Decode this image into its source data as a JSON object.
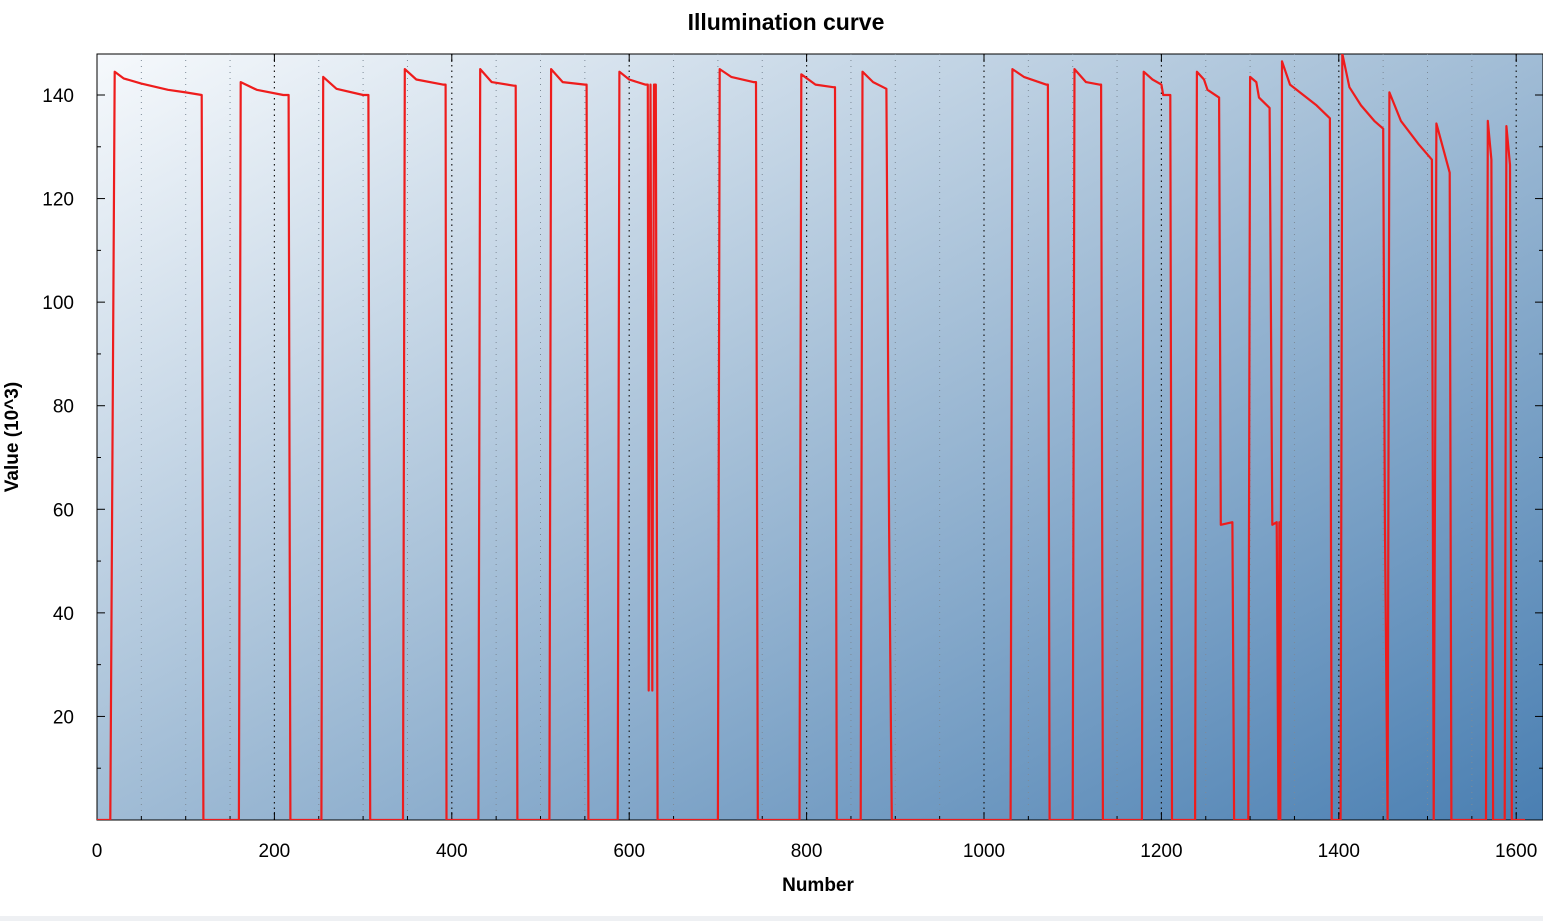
{
  "chart_data": {
    "type": "line",
    "title": "Illumination curve",
    "xlabel": "Number",
    "ylabel": "Value (10^3)",
    "xlim": [
      0,
      1610
    ],
    "ylim": [
      0,
      148
    ],
    "x_ticks": [
      0,
      200,
      400,
      600,
      800,
      1000,
      1200,
      1400,
      1600
    ],
    "y_ticks": [
      20,
      40,
      60,
      80,
      100,
      120,
      140
    ],
    "grid": "vertical dotted",
    "background": "gradient light to steel blue",
    "series": [
      {
        "color": "#ee1c1c",
        "points": [
          [
            0,
            0
          ],
          [
            15,
            0
          ],
          [
            20,
            144.5
          ],
          [
            30,
            143.2
          ],
          [
            50,
            142.2
          ],
          [
            80,
            141.0
          ],
          [
            100,
            140.5
          ],
          [
            118,
            140.0
          ],
          [
            120,
            0
          ],
          [
            160,
            0
          ],
          [
            162,
            142.5
          ],
          [
            180,
            141.0
          ],
          [
            210,
            140.0
          ],
          [
            216,
            140.0
          ],
          [
            218,
            0
          ],
          [
            253,
            0
          ],
          [
            255,
            143.5
          ],
          [
            270,
            141.2
          ],
          [
            300,
            140.0
          ],
          [
            306,
            140.0
          ],
          [
            308,
            0
          ],
          [
            345,
            0
          ],
          [
            347,
            145.0
          ],
          [
            360,
            143.0
          ],
          [
            390,
            142.0
          ],
          [
            393,
            142.0
          ],
          [
            394,
            0
          ],
          [
            430,
            0
          ],
          [
            432,
            145.0
          ],
          [
            445,
            142.5
          ],
          [
            470,
            141.8
          ],
          [
            472,
            141.8
          ],
          [
            474,
            0
          ],
          [
            510,
            0
          ],
          [
            512,
            145.0
          ],
          [
            525,
            142.5
          ],
          [
            550,
            142.0
          ],
          [
            552,
            142.0
          ],
          [
            554,
            0
          ],
          [
            587,
            0
          ],
          [
            589,
            144.5
          ],
          [
            600,
            143.0
          ],
          [
            618,
            142.0
          ],
          [
            621,
            142.0
          ],
          [
            622,
            25
          ],
          [
            624,
            142.0
          ],
          [
            626,
            25
          ],
          [
            628,
            142.0
          ],
          [
            630,
            142.0
          ],
          [
            632,
            0
          ],
          [
            700,
            0
          ],
          [
            702,
            145.0
          ],
          [
            715,
            143.5
          ],
          [
            740,
            142.5
          ],
          [
            743,
            142.5
          ],
          [
            745,
            0
          ],
          [
            792,
            0
          ],
          [
            794,
            144.0
          ],
          [
            810,
            142.0
          ],
          [
            830,
            141.5
          ],
          [
            832,
            141.5
          ],
          [
            834,
            0
          ],
          [
            861,
            0
          ],
          [
            863,
            144.5
          ],
          [
            875,
            142.5
          ],
          [
            890,
            141.2
          ],
          [
            893,
            56.5
          ],
          [
            896,
            0
          ],
          [
            1030,
            0
          ],
          [
            1032,
            145.0
          ],
          [
            1045,
            143.5
          ],
          [
            1070,
            142.0
          ],
          [
            1072,
            142.0
          ],
          [
            1074,
            0
          ],
          [
            1100,
            0
          ],
          [
            1102,
            145.0
          ],
          [
            1115,
            142.5
          ],
          [
            1130,
            142.0
          ],
          [
            1132,
            142.0
          ],
          [
            1134,
            0
          ],
          [
            1178,
            0
          ],
          [
            1180,
            144.5
          ],
          [
            1190,
            143.0
          ],
          [
            1200,
            142.0
          ],
          [
            1202,
            140.0
          ],
          [
            1210,
            140.0
          ],
          [
            1212,
            0
          ],
          [
            1238,
            0
          ],
          [
            1240,
            144.5
          ],
          [
            1248,
            143.0
          ],
          [
            1252,
            141.0
          ],
          [
            1265,
            139.5
          ],
          [
            1267,
            57.0
          ],
          [
            1280,
            57.5
          ],
          [
            1282,
            0
          ],
          [
            1298,
            0
          ],
          [
            1300,
            143.5
          ],
          [
            1307,
            142.5
          ],
          [
            1310,
            139.5
          ],
          [
            1322,
            137.5
          ],
          [
            1325,
            57.0
          ],
          [
            1330,
            57.5
          ],
          [
            1332,
            0
          ],
          [
            1333,
            57.5
          ],
          [
            1334,
            0
          ],
          [
            1336,
            146.5
          ],
          [
            1345,
            142.0
          ],
          [
            1360,
            140.0
          ],
          [
            1375,
            138.0
          ],
          [
            1390,
            135.5
          ],
          [
            1392,
            0
          ],
          [
            1402,
            0
          ],
          [
            1404,
            148.0
          ],
          [
            1412,
            141.5
          ],
          [
            1425,
            138.0
          ],
          [
            1440,
            135.0
          ],
          [
            1450,
            133.5
          ],
          [
            1452,
            57.5
          ],
          [
            1455,
            0
          ],
          [
            1457,
            140.5
          ],
          [
            1470,
            135.0
          ],
          [
            1490,
            130.5
          ],
          [
            1505,
            127.5
          ],
          [
            1507,
            0
          ],
          [
            1510,
            134.5
          ],
          [
            1525,
            125.0
          ],
          [
            1527,
            0
          ],
          [
            1566,
            0
          ],
          [
            1568,
            135.0
          ],
          [
            1572,
            127.5
          ],
          [
            1574,
            0
          ],
          [
            1587,
            0
          ],
          [
            1589,
            134.0
          ],
          [
            1593,
            126.5
          ],
          [
            1595,
            0
          ],
          [
            1610,
            0
          ]
        ]
      }
    ]
  }
}
